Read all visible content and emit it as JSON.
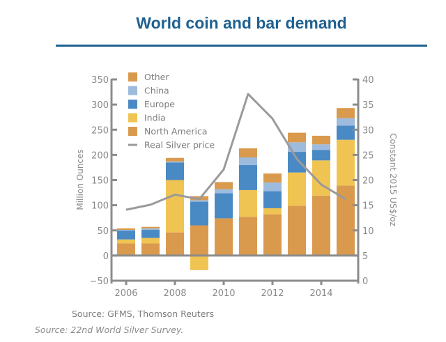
{
  "chart_data": {
    "type": "bar",
    "subtype": "stacked-bar-with-line",
    "title": "World coin and bar demand",
    "xlabel": "",
    "ylabel": "Million Ounces",
    "y2label": "Constant 2015 US$/oz",
    "ylim": [
      -50,
      350
    ],
    "y2lim": [
      0,
      40
    ],
    "yticks": [
      "-50",
      "0",
      "50",
      "100",
      "150",
      "200",
      "250",
      "300",
      "350"
    ],
    "y2ticks": [
      "0",
      "5",
      "10",
      "15",
      "20",
      "25",
      "30",
      "35",
      "40"
    ],
    "x": [
      2006,
      2007,
      2008,
      2009,
      2010,
      2011,
      2012,
      2013,
      2014,
      2015
    ],
    "xticks": [
      "2006",
      "2008",
      "2010",
      "2012",
      "2014"
    ],
    "grid": false,
    "legend_position": "top-left",
    "series": [
      {
        "name": "North America",
        "color": "#d99a4e",
        "axis": "left",
        "kind": "bar",
        "values": [
          24,
          24,
          46,
          60,
          74,
          77,
          82,
          99,
          119,
          139
        ]
      },
      {
        "name": "India",
        "color": "#f0c453",
        "axis": "left",
        "kind": "bar",
        "values": [
          8,
          11,
          104,
          -29,
          0,
          53,
          12,
          66,
          70,
          91
        ]
      },
      {
        "name": "Europe",
        "color": "#4a8ac4",
        "axis": "left",
        "kind": "bar",
        "values": [
          18,
          16,
          35,
          47,
          50,
          50,
          34,
          41,
          21,
          28
        ]
      },
      {
        "name": "China",
        "color": "#9dbbdc",
        "axis": "left",
        "kind": "bar",
        "values": [
          1,
          3,
          2,
          3,
          8,
          15,
          17,
          19,
          11,
          15
        ]
      },
      {
        "name": "Other",
        "color": "#d99a4e",
        "axis": "left",
        "kind": "bar",
        "values": [
          3,
          3,
          7,
          8,
          14,
          18,
          18,
          19,
          17,
          20
        ]
      },
      {
        "name": "Real Silver price",
        "color": "#9a9a9a",
        "axis": "right",
        "kind": "line",
        "values": [
          14.1,
          15.1,
          17.1,
          16.2,
          22.1,
          37.1,
          32.2,
          24.2,
          19.1,
          16.2
        ]
      }
    ],
    "legend": [
      "Other",
      "China",
      "Europe",
      "India",
      "North America",
      "Real Silver price"
    ],
    "annotations": [
      "Source: GFMS, Thomson Reuters"
    ]
  },
  "header": {
    "title": "World coin and bar demand"
  },
  "footer": {
    "source_chart": "Source: GFMS, Thomson Reuters",
    "source_doc": "Source: 22nd World Silver Survey."
  },
  "colors": {
    "title": "#1f6190",
    "axis": "#8c8c8c"
  }
}
